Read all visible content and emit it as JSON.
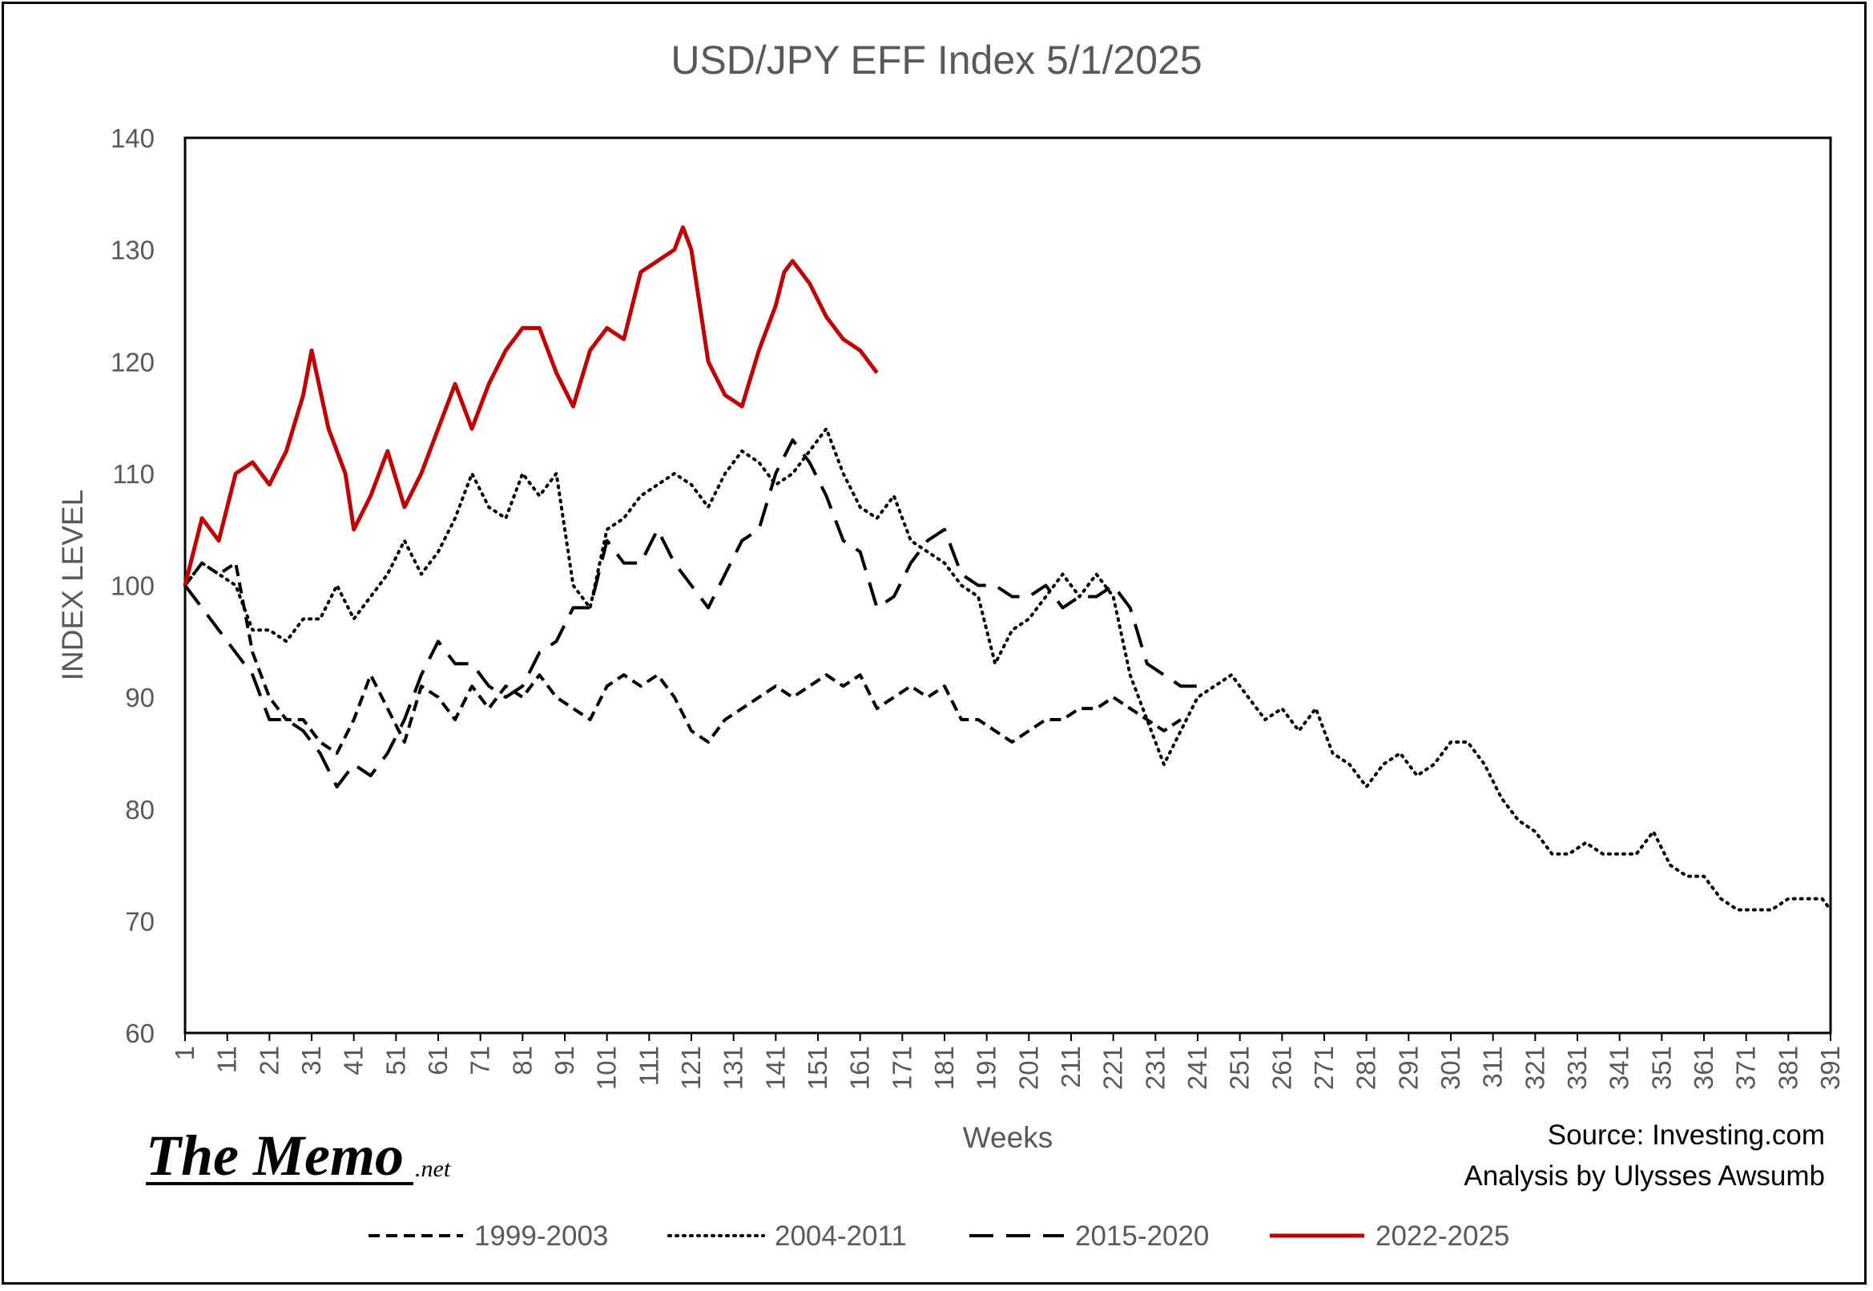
{
  "chart_data": {
    "type": "line",
    "title": "USD/JPY EFF Index 5/1/2025",
    "xlabel": "Weeks",
    "ylabel": "INDEX LEVEL",
    "xlim": [
      1,
      391
    ],
    "ylim": [
      60,
      140
    ],
    "y_ticks": [
      "60",
      "70",
      "80",
      "90",
      "100",
      "110",
      "120",
      "130",
      "140"
    ],
    "x_ticks": [
      "1",
      "11",
      "21",
      "31",
      "41",
      "51",
      "61",
      "71",
      "81",
      "91",
      "101",
      "111",
      "121",
      "131",
      "141",
      "151",
      "161",
      "171",
      "181",
      "191",
      "201",
      "211",
      "221",
      "231",
      "241",
      "251",
      "261",
      "271",
      "281",
      "291",
      "301",
      "311",
      "321",
      "331",
      "341",
      "351",
      "361",
      "371",
      "381",
      "391"
    ],
    "grid": false,
    "legend_position": "bottom",
    "series": [
      {
        "name": "1999-2003",
        "color": "#000000",
        "dash": "short-dash",
        "x": [
          1,
          5,
          9,
          13,
          17,
          21,
          25,
          29,
          33,
          37,
          41,
          45,
          49,
          53,
          57,
          61,
          65,
          69,
          73,
          77,
          81,
          85,
          89,
          93,
          97,
          101,
          105,
          109,
          113,
          117,
          121,
          125,
          129,
          133,
          137,
          141,
          145,
          149,
          153,
          157,
          161,
          165,
          169,
          173,
          177,
          181,
          185,
          189,
          193,
          197,
          201,
          205,
          209,
          213,
          217,
          221,
          225,
          229,
          233,
          237
        ],
        "values": [
          100,
          102,
          101,
          102,
          94,
          90,
          88,
          88,
          86,
          85,
          88,
          92,
          89,
          86,
          91,
          90,
          88,
          91,
          89,
          91,
          90,
          92,
          90,
          89,
          88,
          91,
          92,
          91,
          92,
          90,
          87,
          86,
          88,
          89,
          90,
          91,
          90,
          91,
          92,
          91,
          92,
          89,
          90,
          91,
          90,
          91,
          88,
          88,
          87,
          86,
          87,
          88,
          88,
          89,
          89,
          90,
          89,
          88,
          87,
          88
        ]
      },
      {
        "name": "2004-2011",
        "color": "#000000",
        "dash": "dotted",
        "x": [
          1,
          5,
          9,
          13,
          17,
          21,
          25,
          29,
          33,
          37,
          41,
          45,
          49,
          53,
          57,
          61,
          65,
          69,
          73,
          77,
          81,
          85,
          89,
          93,
          97,
          101,
          105,
          109,
          113,
          117,
          121,
          125,
          129,
          133,
          137,
          141,
          145,
          149,
          153,
          157,
          161,
          165,
          169,
          173,
          177,
          181,
          185,
          189,
          193,
          197,
          201,
          205,
          209,
          213,
          217,
          221,
          225,
          229,
          233,
          237,
          241,
          245,
          249,
          253,
          257,
          261,
          265,
          269,
          273,
          277,
          281,
          285,
          289,
          293,
          297,
          301,
          305,
          309,
          313,
          317,
          321,
          325,
          329,
          333,
          337,
          341,
          345,
          349,
          353,
          357,
          361,
          365,
          369,
          373,
          377,
          381,
          385,
          389,
          391
        ],
        "values": [
          100,
          102,
          101,
          100,
          96,
          96,
          95,
          97,
          97,
          100,
          97,
          99,
          101,
          104,
          101,
          103,
          106,
          110,
          107,
          106,
          110,
          108,
          110,
          100,
          98,
          105,
          106,
          108,
          109,
          110,
          109,
          107,
          110,
          112,
          111,
          109,
          110,
          112,
          114,
          110,
          107,
          106,
          108,
          104,
          103,
          102,
          100,
          99,
          93,
          96,
          97,
          99,
          101,
          99,
          101,
          99,
          92,
          88,
          84,
          87,
          90,
          91,
          92,
          90,
          88,
          89,
          87,
          89,
          85,
          84,
          82,
          84,
          85,
          83,
          84,
          86,
          86,
          84,
          81,
          79,
          78,
          76,
          76,
          77,
          76,
          76,
          76,
          78,
          75,
          74,
          74,
          72,
          71,
          71,
          71,
          72,
          72,
          72,
          71
        ]
      },
      {
        "name": "2015-2020",
        "color": "#000000",
        "dash": "long-dash",
        "x": [
          1,
          5,
          9,
          13,
          17,
          21,
          25,
          29,
          33,
          37,
          41,
          45,
          49,
          53,
          57,
          61,
          65,
          69,
          73,
          77,
          81,
          85,
          89,
          93,
          97,
          101,
          105,
          109,
          113,
          117,
          121,
          125,
          129,
          133,
          137,
          141,
          145,
          149,
          153,
          157,
          161,
          165,
          169,
          173,
          177,
          181,
          185,
          189,
          193,
          197,
          201,
          205,
          209,
          213,
          217,
          221,
          225,
          229,
          233,
          237,
          241
        ],
        "values": [
          100,
          98,
          96,
          94,
          92,
          88,
          88,
          87,
          85,
          82,
          84,
          83,
          85,
          88,
          92,
          95,
          93,
          93,
          91,
          90,
          91,
          94,
          95,
          98,
          98,
          104,
          102,
          102,
          105,
          102,
          100,
          98,
          101,
          104,
          105,
          110,
          113,
          111,
          108,
          104,
          103,
          98,
          99,
          102,
          104,
          105,
          101,
          100,
          100,
          99,
          99,
          100,
          98,
          99,
          99,
          100,
          98,
          93,
          92,
          91,
          91
        ]
      },
      {
        "name": "2022-2025",
        "color": "#c00000",
        "dash": "solid",
        "x": [
          1,
          5,
          9,
          13,
          17,
          21,
          25,
          29,
          31,
          35,
          39,
          41,
          45,
          49,
          53,
          57,
          61,
          65,
          69,
          73,
          77,
          81,
          85,
          89,
          93,
          97,
          101,
          105,
          109,
          113,
          117,
          119,
          121,
          125,
          129,
          133,
          137,
          141,
          143,
          145,
          149,
          153,
          157,
          161,
          165
        ],
        "values": [
          100,
          106,
          104,
          110,
          111,
          109,
          112,
          117,
          121,
          114,
          110,
          105,
          108,
          112,
          107,
          110,
          114,
          118,
          114,
          118,
          121,
          123,
          123,
          119,
          116,
          121,
          123,
          122,
          128,
          129,
          130,
          132,
          130,
          120,
          117,
          116,
          121,
          125,
          128,
          129,
          127,
          124,
          122,
          121,
          119
        ]
      }
    ]
  },
  "source": {
    "line1": "Source: Investing.com",
    "line2": "Analysis by Ulysses Awsumb"
  },
  "logo": {
    "main": "The Memo",
    "suffix": ".net"
  }
}
